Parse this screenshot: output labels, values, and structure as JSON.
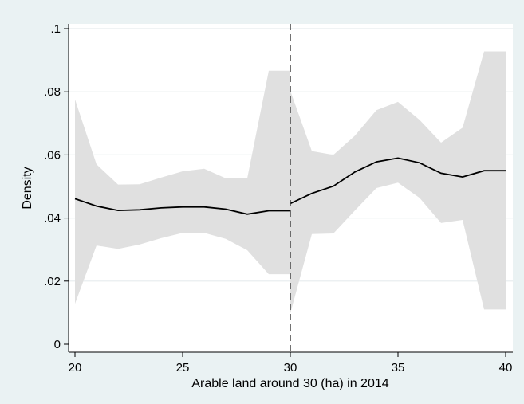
{
  "chart_data": {
    "type": "line",
    "xlabel": "Arable land around 30 (ha) in 2014",
    "ylabel": "Density",
    "xlim": [
      20,
      40
    ],
    "ylim": [
      0,
      0.1
    ],
    "x_ticks": [
      20,
      25,
      30,
      35,
      40
    ],
    "x_tick_labels": [
      "20",
      "25",
      "30",
      "35",
      "40"
    ],
    "y_ticks": [
      0,
      0.02,
      0.04,
      0.06,
      0.08,
      0.1
    ],
    "y_tick_labels": [
      "0",
      ".02",
      ".04",
      ".06",
      ".08",
      ".1"
    ],
    "grid": "horizontal",
    "cutoff": 30,
    "colors": {
      "background": "#eaf2f3",
      "plot_area": "#ffffff",
      "band": "#e0e0e0",
      "line": "#000000",
      "grid": "#e6ecee"
    },
    "segments": [
      {
        "x": [
          20,
          21,
          22,
          23,
          24,
          25,
          26,
          27,
          28,
          29,
          30
        ],
        "y": [
          0.0461,
          0.0438,
          0.0424,
          0.0426,
          0.0432,
          0.0435,
          0.0435,
          0.0428,
          0.0412,
          0.0423,
          0.0423
        ],
        "lower": [
          0.0128,
          0.0313,
          0.0302,
          0.0316,
          0.0336,
          0.0353,
          0.0353,
          0.0334,
          0.0298,
          0.0222,
          0.0222
        ],
        "upper": [
          0.0776,
          0.057,
          0.0506,
          0.0507,
          0.0528,
          0.0548,
          0.0556,
          0.0526,
          0.0526,
          0.0867,
          0.0867
        ]
      },
      {
        "x": [
          30,
          31,
          32,
          33,
          34,
          35,
          36,
          37,
          38,
          39,
          40
        ],
        "y": [
          0.0446,
          0.0478,
          0.0501,
          0.0546,
          0.0578,
          0.059,
          0.0575,
          0.0542,
          0.053,
          0.055,
          0.055
        ],
        "lower": [
          0.0098,
          0.0349,
          0.0351,
          0.0424,
          0.0495,
          0.0512,
          0.0464,
          0.0384,
          0.0394,
          0.011,
          0.011
        ],
        "upper": [
          0.0803,
          0.0612,
          0.06,
          0.0661,
          0.0742,
          0.0768,
          0.0711,
          0.0639,
          0.0686,
          0.0928,
          0.0928
        ]
      }
    ]
  }
}
